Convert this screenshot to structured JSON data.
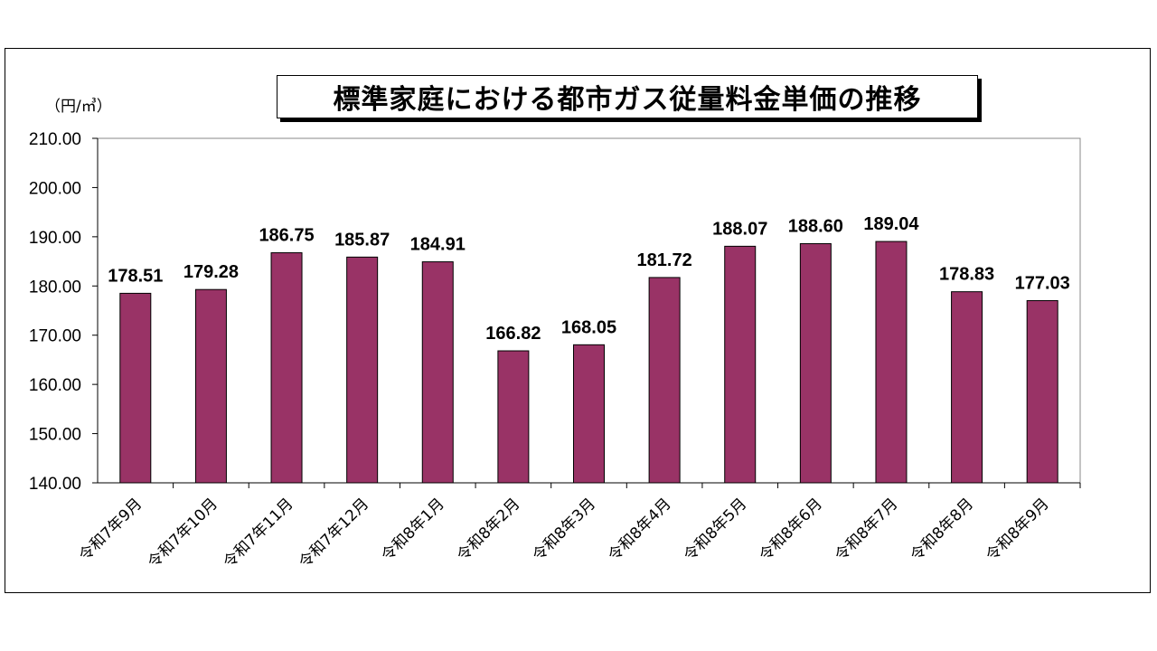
{
  "chart_data": {
    "type": "bar",
    "title": "標準家庭における都市ガス従量料金単価の推移",
    "unit_label": "（円/㎥）",
    "categories": [
      "令和7年9月",
      "令和7年10月",
      "令和7年11月",
      "令和7年12月",
      "令和8年1月",
      "令和8年2月",
      "令和8年3月",
      "令和8年4月",
      "令和8年5月",
      "令和8年6月",
      "令和8年7月",
      "令和8年8月",
      "令和8年9月"
    ],
    "values": [
      178.51,
      179.28,
      186.75,
      185.87,
      184.91,
      166.82,
      168.05,
      181.72,
      188.07,
      188.6,
      189.04,
      178.83,
      177.03
    ],
    "value_labels": [
      "178.51",
      "179.28",
      "186.75",
      "185.87",
      "184.91",
      "166.82",
      "168.05",
      "181.72",
      "188.07",
      "188.60",
      "189.04",
      "178.83",
      "177.03"
    ],
    "yticks": [
      "140.00",
      "150.00",
      "160.00",
      "170.00",
      "180.00",
      "190.00",
      "200.00",
      "210.00"
    ],
    "ylim": [
      140,
      210
    ],
    "xlabel": "",
    "ylabel": "",
    "grid": false,
    "legend": "none",
    "bar_color": "#993366"
  }
}
